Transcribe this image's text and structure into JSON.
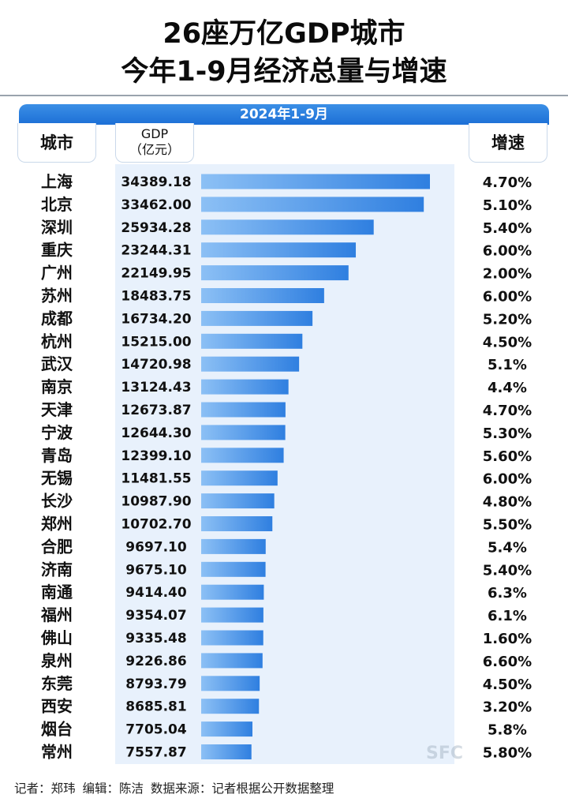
{
  "header": {
    "title_line1": "26座万亿GDP城市",
    "title_line2": "今年1-9月经济总量与增速"
  },
  "columns": {
    "period": "2024年1-9月",
    "city": "城市",
    "gdp_line1": "GDP",
    "gdp_line2": "（亿元）",
    "growth": "增速"
  },
  "chart_data": {
    "type": "bar",
    "orientation": "horizontal",
    "categories": [
      "上海",
      "北京",
      "深圳",
      "重庆",
      "广州",
      "苏州",
      "成都",
      "杭州",
      "武汉",
      "南京",
      "天津",
      "宁波",
      "青岛",
      "无锡",
      "长沙",
      "郑州",
      "合肥",
      "济南",
      "南通",
      "福州",
      "佛山",
      "泉州",
      "东莞",
      "西安",
      "烟台",
      "常州"
    ],
    "values": [
      34389.18,
      33462.0,
      25934.28,
      23244.31,
      22149.95,
      18483.75,
      16734.2,
      15215.0,
      14720.98,
      13124.43,
      12673.87,
      12644.3,
      12399.1,
      11481.55,
      10987.9,
      10702.7,
      9697.1,
      9675.1,
      9414.4,
      9354.07,
      9335.48,
      9226.86,
      8793.79,
      8685.81,
      7705.04,
      7557.87
    ],
    "value_labels": [
      "34389.18",
      "33462.00",
      "25934.28",
      "23244.31",
      "22149.95",
      "18483.75",
      "16734.20",
      "15215.00",
      "14720.98",
      "13124.43",
      "12673.87",
      "12644.30",
      "12399.10",
      "11481.55",
      "10987.90",
      "10702.70",
      "9697.10",
      "9675.10",
      "9414.40",
      "9354.07",
      "9335.48",
      "9226.86",
      "8793.79",
      "8685.81",
      "7705.04",
      "7557.87"
    ],
    "growth": [
      "4.70%",
      "5.10%",
      "5.40%",
      "6.00%",
      "2.00%",
      "6.00%",
      "5.20%",
      "4.50%",
      "5.1%",
      "4.4%",
      "4.70%",
      "5.30%",
      "5.60%",
      "6.00%",
      "4.80%",
      "5.50%",
      "5.4%",
      "5.40%",
      "6.3%",
      "6.1%",
      "1.60%",
      "6.60%",
      "4.50%",
      "3.20%",
      "5.8%",
      "5.80%"
    ],
    "xlim": [
      0,
      34389.18
    ],
    "bar_color": "#3f8ee8",
    "grid": false
  },
  "footer": {
    "reporter": "记者：郑玮",
    "editor": "编辑：陈洁",
    "source": "数据来源：记者根据公开数据整理"
  },
  "watermark": "SFC"
}
